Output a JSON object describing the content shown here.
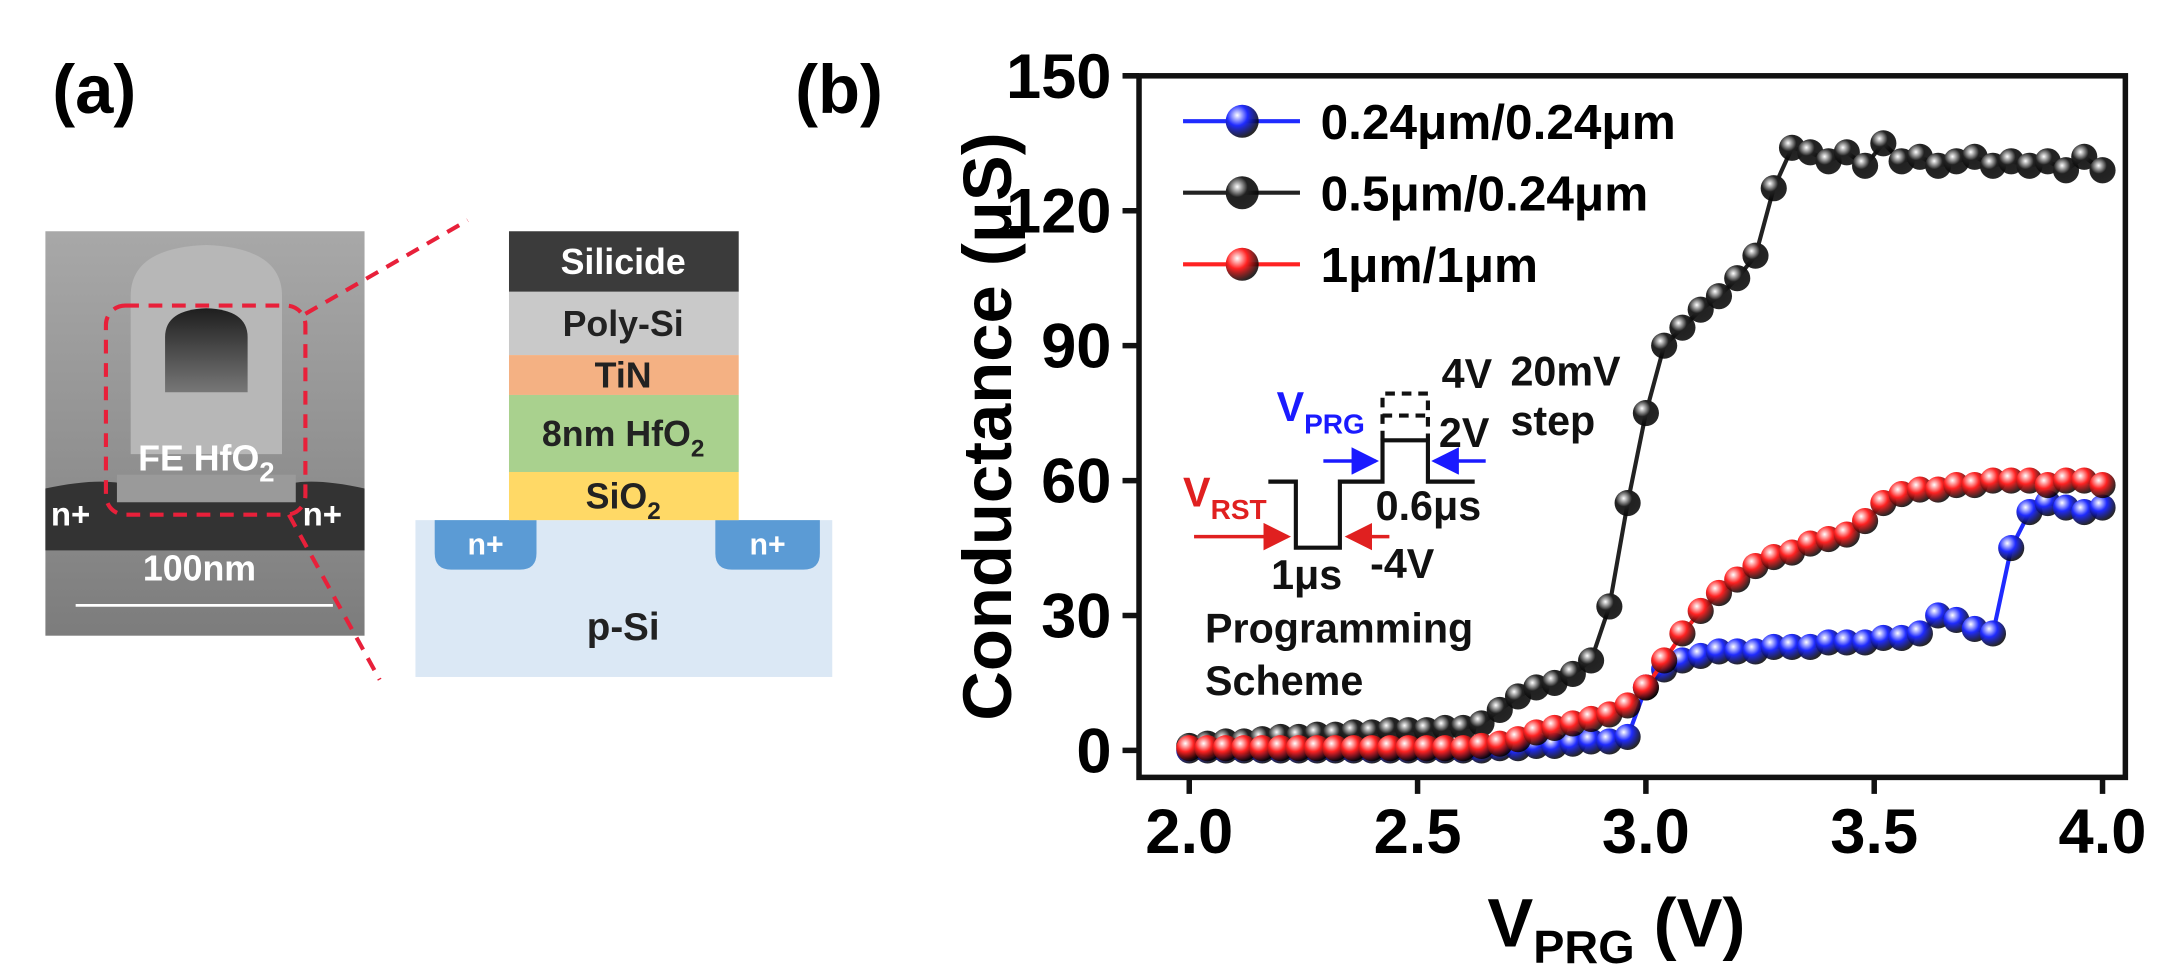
{
  "panel_a": {
    "label": "(a)",
    "tem": {
      "gate_label": {
        "text": "FE HfO",
        "sub": "2"
      },
      "left_doping": "n+",
      "right_doping": "n+",
      "scale_bar": "100nm"
    },
    "stack": {
      "layers": [
        {
          "text": "Silicide",
          "color": "#3b3b3b"
        },
        {
          "text": "Poly-Si",
          "color": "#c9c9c9"
        },
        {
          "text": "TiN",
          "color": "#f4b183"
        },
        {
          "text": "8nm HfO",
          "sub": "2",
          "color": "#a9d18e"
        },
        {
          "text": "SiO",
          "sub": "2",
          "color": "#ffd966"
        }
      ],
      "wells": [
        "n+",
        "n+"
      ],
      "substrate": "p-Si"
    }
  },
  "chart_data": {
    "type": "line",
    "panel_label": "(b)",
    "ylabel": "Conductance (μS)",
    "xlabel": {
      "text": "V",
      "sub": "PRG",
      "unit": " (V)"
    },
    "x": [
      2,
      2.04,
      2.08,
      2.12,
      2.16,
      2.2,
      2.24,
      2.28,
      2.32,
      2.36,
      2.4,
      2.44,
      2.48,
      2.52,
      2.56,
      2.6,
      2.64,
      2.68,
      2.72,
      2.76,
      2.8,
      2.84,
      2.88,
      2.92,
      2.96,
      3,
      3.04,
      3.08,
      3.12,
      3.16,
      3.2,
      3.24,
      3.28,
      3.32,
      3.36,
      3.4,
      3.44,
      3.48,
      3.52,
      3.56,
      3.6,
      3.64,
      3.68,
      3.72,
      3.76,
      3.8,
      3.84,
      3.88,
      3.92,
      3.96,
      4
    ],
    "series": [
      {
        "name": "0.24μm/0.24μm",
        "color": "#1f2bff",
        "values": [
          0,
          0,
          0,
          0,
          0,
          0,
          0,
          0,
          0,
          0,
          0,
          0,
          0,
          0,
          0,
          0,
          0,
          0.5,
          0.5,
          1,
          1,
          1.5,
          2,
          2,
          3,
          14,
          18,
          20,
          21,
          22,
          22,
          22,
          23,
          23,
          23,
          24,
          24,
          24,
          25,
          25,
          26,
          30,
          29,
          27,
          26,
          45,
          53,
          55,
          54,
          53,
          54
        ]
      },
      {
        "name": "0.5μm/0.24μm",
        "color": "#222222",
        "values": [
          1,
          1.5,
          2,
          2,
          2.5,
          3,
          3,
          3.5,
          3.5,
          4,
          4,
          4.5,
          4.5,
          4.5,
          5,
          5,
          6,
          9,
          12,
          14,
          15,
          17,
          20,
          32,
          55,
          75,
          90,
          94,
          98,
          101,
          105,
          110,
          125,
          134,
          133,
          131,
          133,
          130,
          135,
          131,
          132,
          130,
          131,
          132,
          130,
          131,
          130,
          131,
          129,
          132,
          129
        ]
      },
      {
        "name": "1μm/1μm",
        "color": "#ff2222",
        "values": [
          0.5,
          0.5,
          0.5,
          0.5,
          0.5,
          0.5,
          0.5,
          0.5,
          0.5,
          0.5,
          0.5,
          0.5,
          0.5,
          0.5,
          0.5,
          0.5,
          1,
          1.5,
          2.5,
          4,
          5,
          6,
          7,
          8,
          10,
          14,
          20,
          26,
          31,
          35,
          38,
          41,
          43,
          44,
          46,
          47,
          48,
          51,
          55,
          57,
          58,
          58,
          59,
          59,
          60,
          60,
          60,
          59,
          60,
          60,
          59
        ]
      }
    ],
    "xlim": [
      1.89,
      4.05
    ],
    "ylim": [
      -6,
      150
    ],
    "xticks": [
      {
        "value": 2,
        "label": "2.0"
      },
      {
        "value": 2.5,
        "label": "2.5"
      },
      {
        "value": 3,
        "label": "3.0"
      },
      {
        "value": 3.5,
        "label": "3.5"
      },
      {
        "value": 4,
        "label": "4.0"
      }
    ],
    "yticks": [
      0,
      30,
      60,
      90,
      120,
      150
    ],
    "legend": "upper left",
    "markers": true,
    "annotations": [
      {
        "text": "V",
        "sub": "PRG",
        "color": "#1a1aff"
      },
      {
        "text": "V",
        "sub": "RST",
        "color": "#e02020"
      },
      {
        "text": "4V"
      },
      {
        "text": "2V"
      },
      {
        "text": "20mV"
      },
      {
        "text": "step"
      },
      {
        "text": "0.6μs"
      },
      {
        "text": "1μs"
      },
      {
        "text": "-4V"
      },
      {
        "text": "Programming"
      },
      {
        "text": "Scheme"
      }
    ]
  }
}
